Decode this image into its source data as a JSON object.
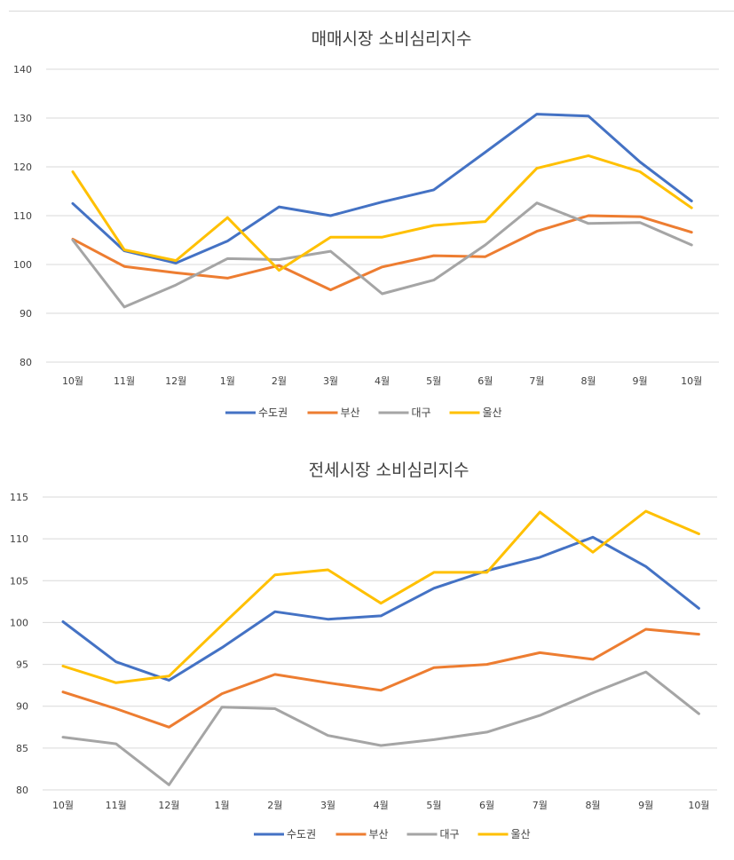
{
  "chart_data": [
    {
      "type": "line",
      "title": "매매시장 소비심리지수",
      "categories": [
        "10월",
        "11월",
        "12월",
        "1월",
        "2월",
        "3월",
        "4월",
        "5월",
        "6월",
        "7월",
        "8월",
        "9월",
        "10월"
      ],
      "ylim": [
        80,
        140
      ],
      "yticks": [
        80,
        90,
        100,
        110,
        120,
        130,
        140
      ],
      "grid": true,
      "legend": "bottom",
      "series": [
        {
          "name": "수도권",
          "color": "#4472c4",
          "values": [
            112.5,
            102.8,
            100.3,
            104.8,
            111.8,
            110.0,
            112.8,
            115.3,
            123.0,
            130.8,
            130.4,
            121.0,
            113.0
          ]
        },
        {
          "name": "부산",
          "color": "#ed7d31",
          "values": [
            105.2,
            99.6,
            98.3,
            97.2,
            99.8,
            94.8,
            99.5,
            101.8,
            101.6,
            106.8,
            110.0,
            109.8,
            106.6
          ]
        },
        {
          "name": "대구",
          "color": "#a5a5a5",
          "values": [
            105.0,
            91.3,
            95.8,
            101.2,
            101.0,
            102.7,
            94.0,
            96.8,
            104.0,
            112.6,
            108.4,
            108.6,
            104.0
          ]
        },
        {
          "name": "울산",
          "color": "#ffc000",
          "values": [
            119.0,
            103.0,
            100.8,
            109.6,
            98.8,
            105.6,
            105.6,
            108.0,
            108.8,
            119.7,
            122.3,
            119.0,
            111.6
          ]
        }
      ]
    },
    {
      "type": "line",
      "title": "전세시장 소비심리지수",
      "categories": [
        "10월",
        "11월",
        "12월",
        "1월",
        "2월",
        "3월",
        "4월",
        "5월",
        "6월",
        "7월",
        "8월",
        "9월",
        "10월"
      ],
      "ylim": [
        80,
        115
      ],
      "yticks": [
        80,
        85,
        90,
        95,
        100,
        105,
        110,
        115
      ],
      "grid": true,
      "legend": "bottom",
      "series": [
        {
          "name": "수도권",
          "color": "#4472c4",
          "values": [
            100.1,
            95.3,
            93.1,
            97.0,
            101.3,
            100.4,
            100.8,
            104.1,
            106.2,
            107.8,
            110.2,
            106.7,
            101.7
          ]
        },
        {
          "name": "부산",
          "color": "#ed7d31",
          "values": [
            91.7,
            89.7,
            87.5,
            91.5,
            93.8,
            92.8,
            91.9,
            94.6,
            95.0,
            96.4,
            95.6,
            99.2,
            98.6
          ]
        },
        {
          "name": "대구",
          "color": "#a5a5a5",
          "values": [
            86.3,
            85.5,
            80.6,
            89.9,
            89.7,
            86.5,
            85.3,
            86.0,
            86.9,
            88.9,
            91.6,
            94.1,
            89.1
          ]
        },
        {
          "name": "울산",
          "color": "#ffc000",
          "values": [
            94.8,
            92.8,
            93.6,
            99.7,
            105.7,
            106.3,
            102.3,
            106.0,
            106.0,
            113.2,
            108.4,
            113.3,
            110.6
          ]
        }
      ]
    }
  ]
}
